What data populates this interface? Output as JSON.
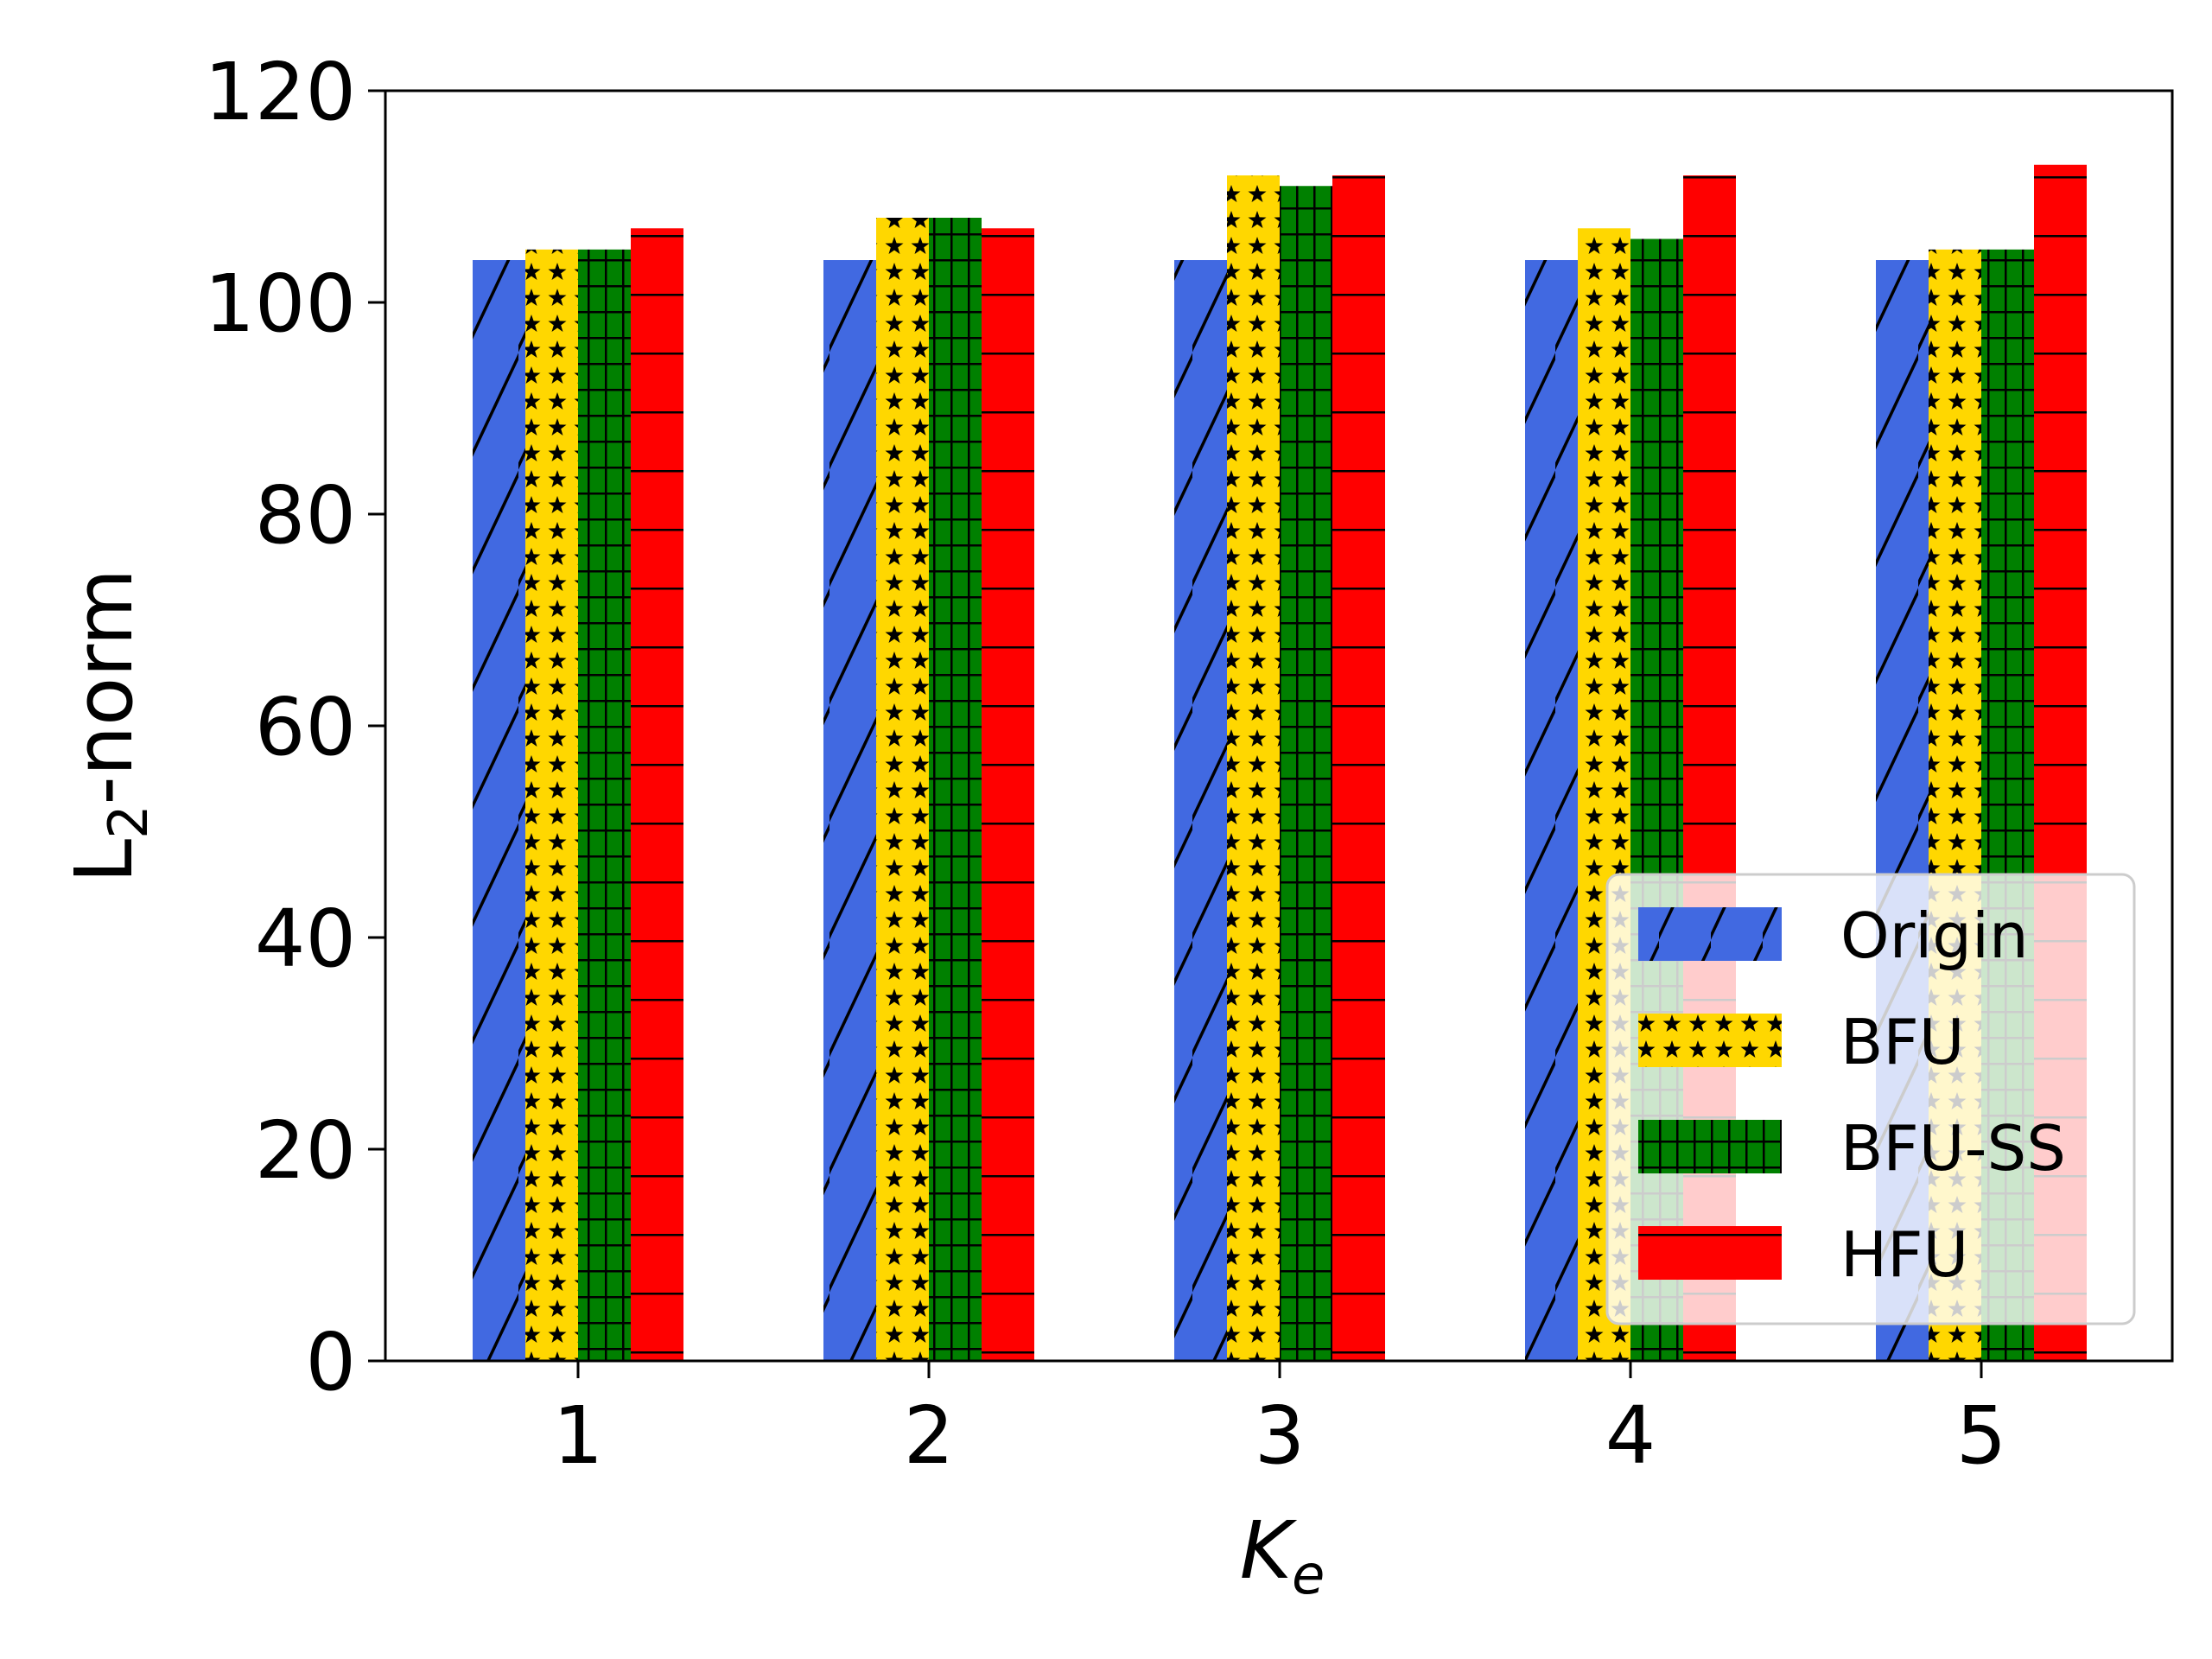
{
  "chart_data": {
    "type": "bar",
    "categories": [
      "1",
      "2",
      "3",
      "4",
      "5"
    ],
    "xlabel": "K",
    "xlabel_subscript": "e",
    "ylabel": "L",
    "ylabel_subscript": "2",
    "ylabel_suffix": "-norm",
    "ylim": [
      0,
      120
    ],
    "yticks": [
      "0",
      "20",
      "40",
      "60",
      "80",
      "100",
      "120"
    ],
    "grid": false,
    "legend_position": "lower-right",
    "series": [
      {
        "name": "Origin",
        "color": "#4169E1",
        "hatch": "diagonal",
        "values": [
          104,
          104,
          104,
          104,
          104
        ]
      },
      {
        "name": "BFU",
        "color": "#FFD700",
        "hatch": "stars",
        "values": [
          105,
          108,
          112,
          107,
          105
        ]
      },
      {
        "name": "BFU-SS",
        "color": "#008000",
        "hatch": "grid",
        "values": [
          105,
          108,
          111,
          106,
          105
        ]
      },
      {
        "name": "HFU",
        "color": "#FF0000",
        "hatch": "horizontal",
        "values": [
          107,
          107,
          112,
          112,
          113
        ]
      }
    ]
  }
}
